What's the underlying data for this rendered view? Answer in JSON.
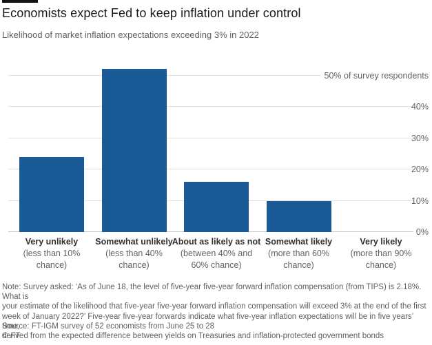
{
  "header": {
    "title": "Economists expect Fed to keep inflation under control",
    "subtitle": "Likelihood of market inflation expectations exceeding 3% in 2022"
  },
  "chart_data": {
    "type": "bar",
    "title": "Economists expect Fed to keep inflation under control",
    "subtitle": "Likelihood of market inflation expectations exceeding 3% in 2022",
    "categories": [
      "Very unlikely (less than 10% chance)",
      "Somewhat unlikely (less than 40% chance)",
      "About as likely as not (between 40% and 60% chance)",
      "Somewhat likely (more than 60% chance)",
      "Very likely (more than 90% chance)"
    ],
    "values": [
      24,
      52,
      16,
      10,
      0
    ],
    "xlabel": "",
    "ylabel": "% of survey respondents",
    "ylim": [
      0,
      50
    ],
    "yticks": [
      0,
      10,
      20,
      30,
      40,
      50
    ],
    "grid": true,
    "legend": false,
    "axis_side": "right",
    "top_axis_label": "50% of survey respondents"
  },
  "y_axis": {
    "ticks": [
      {
        "label": "0%",
        "value": 0
      },
      {
        "label": "10%",
        "value": 10
      },
      {
        "label": "20%",
        "value": 20
      },
      {
        "label": "30%",
        "value": 30
      },
      {
        "label": "40%",
        "value": 40
      }
    ],
    "top": {
      "label": "50% of survey respondents",
      "value": 50
    }
  },
  "x_labels": [
    {
      "cat": "Very unlikely",
      "sub": "(less than 10%\nchance)"
    },
    {
      "cat": "Somewhat unlikely",
      "sub": "(less than 40%\nchance)"
    },
    {
      "cat": "About as likely as not",
      "sub": "(between 40% and\n60% chance)"
    },
    {
      "cat": "Somewhat likely",
      "sub": "(more than 60%\nchance)"
    },
    {
      "cat": "Very likely",
      "sub": "(more than 90%\nchance)"
    }
  ],
  "footer": {
    "note": "Note: Survey asked: ‘As of June 18, the level of five-year five-year forward inflation compensation (from TIPS) is 2.18%. What is\nyour estimate of the likelihood that five-year five-year forward inflation compensation will exceed 3% at the end of the first\nweek of January 2022?’ Five-year five-year forwards indicate what five-year inflation expectations will be in five years’ time,\nderived from the expected difference between yields on Treasuries and inflation-protected government bonds",
    "source": "Source: FT-IGM survey of 52 economists from June 25 to 28",
    "copyright_symbol": "©",
    "copyright_brand": "FT"
  },
  "colors": {
    "bar": "#1a5a96",
    "grid": "#e2dfda",
    "baseline": "#c9c4bf",
    "title_text": "#1a1817",
    "muted_text": "#66605b"
  }
}
